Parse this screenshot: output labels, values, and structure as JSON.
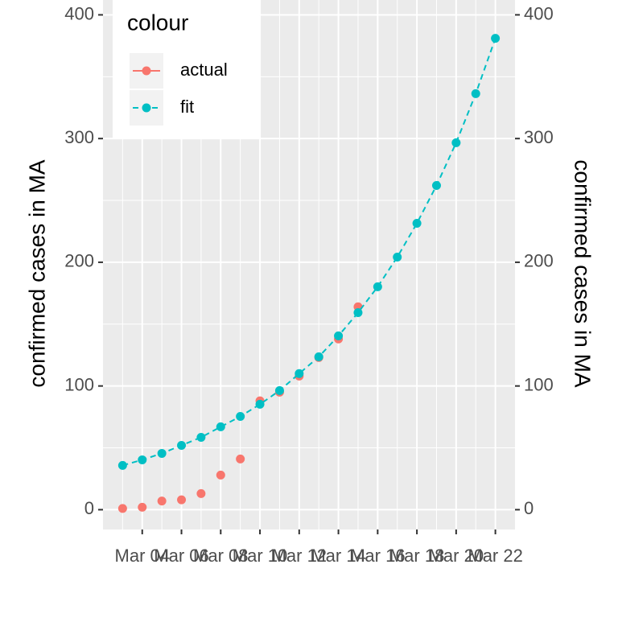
{
  "chart_data": {
    "type": "line",
    "x": [
      "Mar 03",
      "Mar 04",
      "Mar 05",
      "Mar 06",
      "Mar 07",
      "Mar 08",
      "Mar 09",
      "Mar 10",
      "Mar 11",
      "Mar 12",
      "Mar 13",
      "Mar 14",
      "Mar 15",
      "Mar 16",
      "Mar 17",
      "Mar 18",
      "Mar 19",
      "Mar 20",
      "Mar 21",
      "Mar 22"
    ],
    "series": [
      {
        "name": "actual",
        "color": "#F8766D",
        "values": [
          1,
          2,
          7,
          8,
          13,
          28,
          41,
          88,
          95,
          108,
          123,
          138,
          164,
          null,
          null,
          null,
          null,
          null,
          null,
          null
        ]
      },
      {
        "name": "fit",
        "color": "#00BFC4",
        "dashed": true,
        "values": [
          35.8,
          40.3,
          45.5,
          52,
          58.5,
          67,
          75.4,
          85.2,
          96.3,
          110,
          123.6,
          140.5,
          159.3,
          180.2,
          204.2,
          231.5,
          262.1,
          296.6,
          336.3,
          381
        ]
      }
    ],
    "xticks": [
      "Mar 04",
      "Mar 06",
      "Mar 08",
      "Mar 10",
      "Mar 12",
      "Mar 14",
      "Mar 16",
      "Mar 18",
      "Mar 20",
      "Mar 22"
    ],
    "ylim": [
      -16,
      412
    ],
    "yticks": [
      0,
      100,
      200,
      300,
      400
    ],
    "y2lim": [
      -16,
      412
    ],
    "y2ticks": [
      0,
      100,
      200,
      300,
      400
    ],
    "ylabel": "confirmed cases in MA",
    "y2label": "confirmed cases in MA",
    "legend_title": "colour",
    "legend": "top-left",
    "grid": true
  }
}
